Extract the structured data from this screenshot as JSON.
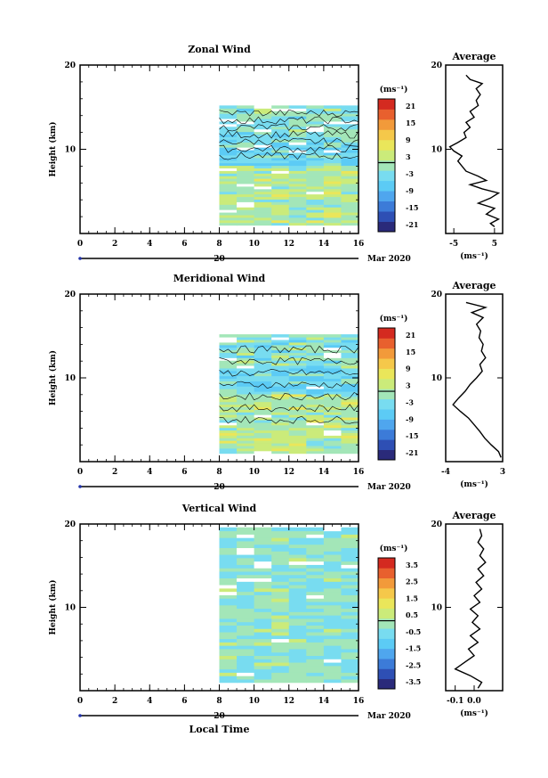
{
  "colorbar_colors": [
    "#2a2a7a",
    "#2e4fb4",
    "#3c7bd8",
    "#4fa6ee",
    "#5ccbf5",
    "#78dcf0",
    "#a3e6b8",
    "#cbeb7a",
    "#eae65a",
    "#f5c84a",
    "#f29a3a",
    "#e8602e",
    "#d42a20"
  ],
  "chart_data": [
    {
      "type": "heatmap",
      "title": "Zonal Wind",
      "ylabel": "Height (km)",
      "xlabel": "",
      "x_ticks": [
        "0",
        "2",
        "4",
        "6",
        "8",
        "10",
        "12",
        "14",
        "16"
      ],
      "y_ticks": [
        "20",
        "10"
      ],
      "xlim": [
        0,
        16
      ],
      "ylim": [
        0,
        20
      ],
      "data_start_hour": 8,
      "date_label": "20",
      "date_suffix": "Mar 2020",
      "unit": "(ms⁻¹)",
      "colorbar_ticks": [
        "21",
        "15",
        "9",
        "3",
        "-3",
        "-9",
        "-15",
        "-21"
      ],
      "avg_title": "Average",
      "avg_x_ticks": [
        "-5",
        "5"
      ],
      "avg_xlim": [
        -7,
        7
      ],
      "avg_unit": "(ms⁻¹)",
      "avg_profile": [
        [
          0.8,
          5
        ],
        [
          1.2,
          4
        ],
        [
          1.7,
          6
        ],
        [
          2.3,
          3
        ],
        [
          3,
          5
        ],
        [
          3.6,
          1
        ],
        [
          4.2,
          4
        ],
        [
          4.8,
          6
        ],
        [
          5.3,
          2
        ],
        [
          5.8,
          -1
        ],
        [
          6.3,
          3
        ],
        [
          6.8,
          1
        ],
        [
          7.4,
          -2
        ],
        [
          8,
          -3
        ],
        [
          8.6,
          -4
        ],
        [
          9.2,
          -3
        ],
        [
          9.8,
          -5
        ],
        [
          10.3,
          -6
        ],
        [
          10.8,
          -4
        ],
        [
          11.4,
          -2
        ],
        [
          12,
          -2.5
        ],
        [
          12.6,
          -1
        ],
        [
          13.2,
          -2
        ],
        [
          13.8,
          0
        ],
        [
          14.5,
          -1
        ],
        [
          15.2,
          1
        ],
        [
          15.8,
          0.5
        ],
        [
          16.5,
          1.5
        ],
        [
          17.2,
          0.5
        ],
        [
          17.8,
          2
        ],
        [
          18.3,
          -1
        ],
        [
          18.8,
          -2
        ]
      ]
    },
    {
      "type": "heatmap",
      "title": "Meridional Wind",
      "ylabel": "Height (km)",
      "xlabel": "",
      "x_ticks": [
        "0",
        "2",
        "4",
        "6",
        "8",
        "10",
        "12",
        "14",
        "16"
      ],
      "y_ticks": [
        "20",
        "10"
      ],
      "xlim": [
        0,
        16
      ],
      "ylim": [
        0,
        20
      ],
      "data_start_hour": 8,
      "date_label": "20",
      "date_suffix": "Mar 2020",
      "unit": "(ms⁻¹)",
      "colorbar_ticks": [
        "21",
        "15",
        "9",
        "3",
        "-3",
        "-9",
        "-15",
        "-21"
      ],
      "avg_title": "Average",
      "avg_x_ticks": [
        "-4",
        "3"
      ],
      "avg_xlim": [
        -4,
        3
      ],
      "avg_unit": "(ms⁻¹)",
      "avg_profile": [
        [
          0.5,
          2.8
        ],
        [
          1.2,
          2.5
        ],
        [
          2,
          1.6
        ],
        [
          2.8,
          0.8
        ],
        [
          3.6,
          0.2
        ],
        [
          4.4,
          -0.5
        ],
        [
          5.2,
          -1.2
        ],
        [
          6,
          -2.2
        ],
        [
          6.8,
          -3.1
        ],
        [
          7.6,
          -2.4
        ],
        [
          8.4,
          -1.6
        ],
        [
          9.2,
          -1
        ],
        [
          10,
          -0.2
        ],
        [
          10.8,
          0.5
        ],
        [
          11.6,
          0.2
        ],
        [
          12.4,
          0.9
        ],
        [
          13.2,
          0.4
        ],
        [
          14,
          0.6
        ],
        [
          14.8,
          0.1
        ],
        [
          15.6,
          0.3
        ],
        [
          16.4,
          -0.2
        ],
        [
          17.2,
          0.6
        ],
        [
          17.8,
          -0.8
        ],
        [
          18.4,
          0.9
        ],
        [
          19,
          -1.5
        ]
      ]
    },
    {
      "type": "heatmap",
      "title": "Vertical Wind",
      "ylabel": "Height (km)",
      "xlabel": "Local Time",
      "x_ticks": [
        "0",
        "2",
        "4",
        "6",
        "8",
        "10",
        "12",
        "14",
        "16"
      ],
      "y_ticks": [
        "20",
        "10"
      ],
      "xlim": [
        0,
        16
      ],
      "ylim": [
        0,
        20
      ],
      "data_start_hour": 8,
      "date_label": "20",
      "date_suffix": "Mar 2020",
      "unit": "(ms⁻¹)",
      "colorbar_ticks": [
        "3.5",
        "2.5",
        "1.5",
        "0.5",
        "-0.5",
        "-1.5",
        "-2.5",
        "-3.5"
      ],
      "avg_title": "Average",
      "avg_x_ticks": [
        "-0.1",
        "0.0"
      ],
      "avg_xlim": [
        -0.15,
        0.15
      ],
      "avg_unit": "(ms⁻¹)",
      "avg_profile": [
        [
          0.3,
          0.02
        ],
        [
          1,
          0.04
        ],
        [
          1.8,
          -0.02
        ],
        [
          2.6,
          -0.1
        ],
        [
          3.4,
          -0.05
        ],
        [
          4.2,
          0.0
        ],
        [
          5,
          -0.03
        ],
        [
          5.8,
          0.02
        ],
        [
          6.6,
          -0.02
        ],
        [
          7.4,
          0.03
        ],
        [
          8.2,
          -0.01
        ],
        [
          9,
          0.02
        ],
        [
          9.8,
          -0.02
        ],
        [
          10.6,
          0.03
        ],
        [
          11.4,
          0.0
        ],
        [
          12.2,
          0.04
        ],
        [
          13,
          0.01
        ],
        [
          13.8,
          0.05
        ],
        [
          14.6,
          0.02
        ],
        [
          15.4,
          0.06
        ],
        [
          16.2,
          0.03
        ],
        [
          17,
          0.05
        ],
        [
          17.8,
          0.02
        ],
        [
          18.6,
          0.04
        ],
        [
          19.4,
          0.03
        ]
      ]
    }
  ]
}
